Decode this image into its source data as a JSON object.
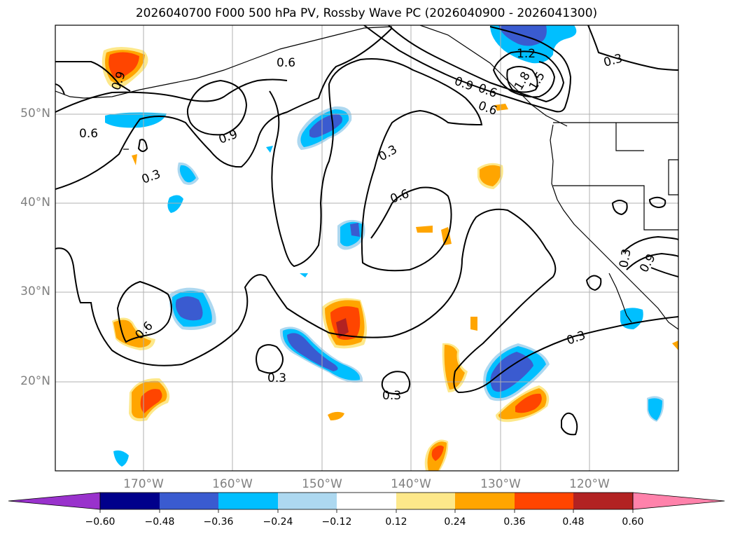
{
  "title": "2026040700 F000 500 hPa PV, Rossby Wave PC (2026040900 - 2026041300)",
  "map": {
    "lat_labels": [
      "50°N",
      "40°N",
      "30°N",
      "20°N"
    ],
    "lon_labels": [
      "170°W",
      "160°W",
      "150°W",
      "140°W",
      "130°W",
      "120°W"
    ]
  },
  "contour_labels": [
    "0.9",
    "0.6",
    "0.6",
    "0.9",
    "0.3",
    "0.3",
    "0.6",
    "0.6",
    "0.3",
    "0.3",
    "0.3",
    "0.6",
    "0.9",
    "0.6",
    "1.2",
    "1.5",
    "1.8",
    "0.3",
    "0.9",
    "0.3"
  ],
  "colorbar": {
    "colors": [
      "#9932cc",
      "#00008b",
      "#3a5bd0",
      "#00bfff",
      "#add8f0",
      "#ffffff",
      "#fde88a",
      "#ffa500",
      "#ff4500",
      "#b22222",
      "#ff82ab"
    ],
    "ticks": [
      "−0.60",
      "−0.48",
      "−0.36",
      "−0.24",
      "−0.12",
      "0.12",
      "0.24",
      "0.36",
      "0.48",
      "0.60"
    ]
  },
  "colors": {
    "pos1": "#fde88a",
    "pos2": "#ffa500",
    "pos3": "#ff4500",
    "pos4": "#b22222",
    "neg1": "#add8f0",
    "neg2": "#00bfff",
    "neg3": "#3a5bd0"
  }
}
